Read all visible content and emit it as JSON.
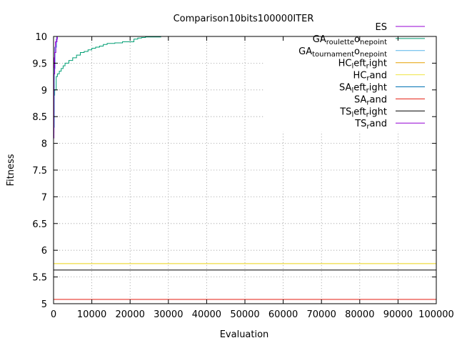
{
  "chart_data": {
    "type": "line",
    "title": "Comparison10bits100000ITER",
    "xlabel": "Evaluation",
    "ylabel": "Fitness",
    "xlim": [
      0,
      100000
    ],
    "ylim": [
      5,
      10
    ],
    "xticks": [
      0,
      10000,
      20000,
      30000,
      40000,
      50000,
      60000,
      70000,
      80000,
      90000,
      100000
    ],
    "yticks": [
      5,
      5.5,
      6,
      6.5,
      7,
      7.5,
      8,
      8.5,
      9,
      9.5,
      10
    ],
    "xtick_labels": [
      "0",
      "10000",
      "20000",
      "30000",
      "40000",
      "50000",
      "60000",
      "70000",
      "80000",
      "90000",
      "100000"
    ],
    "ytick_labels": [
      "5",
      "5.5",
      "6",
      "6.5",
      "7",
      "7.5",
      "8",
      "8.5",
      "9",
      "9.5",
      "10"
    ],
    "grid": true,
    "legend_position": "top-right",
    "series": [
      {
        "name": "ES",
        "name_parts": [
          [
            "ES",
            ""
          ]
        ],
        "color": "#9400d3",
        "step": true,
        "x": [
          0,
          100,
          200,
          300,
          500,
          700,
          1000
        ],
        "y": [
          8.1,
          9.2,
          9.6,
          9.8,
          9.9,
          9.95,
          10
        ]
      },
      {
        "name": "GA_roulette_onepoint",
        "name_parts": [
          [
            "GA",
            ""
          ],
          [
            "roulette",
            "sub"
          ],
          [
            "o",
            ""
          ],
          [
            "nepoint",
            "sub"
          ]
        ],
        "color": "#009e73",
        "step": true,
        "x": [
          0,
          300,
          700,
          1000,
          1500,
          2000,
          2500,
          3000,
          4000,
          5000,
          6000,
          7000,
          8000,
          9000,
          10000,
          11000,
          12000,
          13000,
          14000,
          16000,
          18000,
          20000,
          21000,
          22000,
          23000,
          24000,
          26000,
          28000,
          30000
        ],
        "y": [
          8.9,
          9.0,
          9.25,
          9.3,
          9.35,
          9.4,
          9.45,
          9.5,
          9.55,
          9.6,
          9.65,
          9.7,
          9.72,
          9.75,
          9.78,
          9.8,
          9.82,
          9.85,
          9.87,
          9.88,
          9.9,
          9.9,
          9.95,
          9.97,
          9.98,
          9.99,
          9.99,
          10,
          10
        ]
      },
      {
        "name": "GA_tournament_onepoint",
        "name_parts": [
          [
            "GA",
            ""
          ],
          [
            "tournament",
            "sub"
          ],
          [
            "o",
            ""
          ],
          [
            "nepoint",
            "sub"
          ]
        ],
        "color": "#56b4e9",
        "step": true,
        "x": [
          0,
          200,
          400,
          800
        ],
        "y": [
          8.3,
          9.4,
          9.8,
          10
        ]
      },
      {
        "name": "HC_left_right",
        "name_parts": [
          [
            "HC",
            ""
          ],
          [
            "l",
            "sub"
          ],
          [
            "eft",
            ""
          ],
          [
            "r",
            "sub"
          ],
          [
            "ight",
            ""
          ]
        ],
        "color": "#e69f00",
        "step": true,
        "x": [
          0,
          100000
        ],
        "y": [
          5.75,
          5.75
        ]
      },
      {
        "name": "HC_rand",
        "name_parts": [
          [
            "HC",
            ""
          ],
          [
            "r",
            "sub"
          ],
          [
            "and",
            ""
          ]
        ],
        "color": "#f0e442",
        "step": true,
        "x": [
          0,
          100000
        ],
        "y": [
          5.75,
          5.75
        ]
      },
      {
        "name": "SA_left_right",
        "name_parts": [
          [
            "SA",
            ""
          ],
          [
            "l",
            "sub"
          ],
          [
            "eft",
            ""
          ],
          [
            "r",
            "sub"
          ],
          [
            "ight",
            ""
          ]
        ],
        "color": "#0072b2",
        "step": true,
        "x": [
          0,
          100000
        ],
        "y": [
          5.08,
          5.08
        ]
      },
      {
        "name": "SA_rand",
        "name_parts": [
          [
            "SA",
            ""
          ],
          [
            "r",
            "sub"
          ],
          [
            "and",
            ""
          ]
        ],
        "color": "#e51e10",
        "step": true,
        "x": [
          0,
          100000
        ],
        "y": [
          5.08,
          5.08
        ]
      },
      {
        "name": "TS_left_right",
        "name_parts": [
          [
            "TS",
            ""
          ],
          [
            "l",
            "sub"
          ],
          [
            "eft",
            ""
          ],
          [
            "r",
            "sub"
          ],
          [
            "ight",
            ""
          ]
        ],
        "color": "#000000",
        "step": true,
        "x": [
          0,
          100000
        ],
        "y": [
          5.63,
          5.63
        ]
      },
      {
        "name": "TS_rand",
        "name_parts": [
          [
            "TS",
            ""
          ],
          [
            "r",
            "sub"
          ],
          [
            "and",
            ""
          ]
        ],
        "color": "#9400d3",
        "step": true,
        "x": [
          0,
          100,
          300,
          600,
          900
        ],
        "y": [
          8.2,
          9.3,
          9.7,
          9.9,
          10
        ]
      }
    ]
  }
}
